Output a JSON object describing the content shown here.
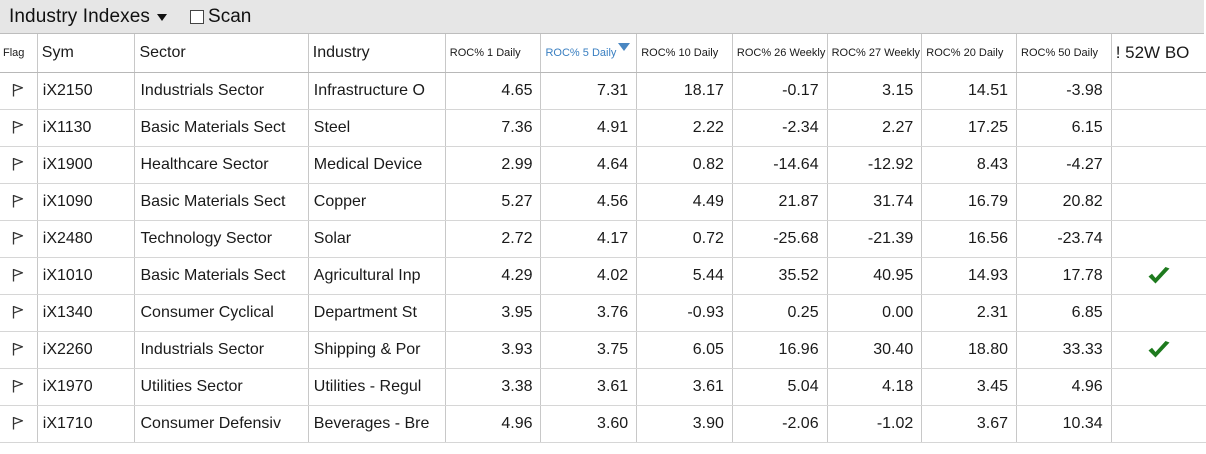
{
  "toolbar": {
    "title": "Industry Indexes",
    "scan_label": "Scan",
    "scan_checked": false
  },
  "columns": [
    {
      "key": "flag",
      "label": "Flag"
    },
    {
      "key": "sym",
      "label": "Sym"
    },
    {
      "key": "sector",
      "label": "Sector"
    },
    {
      "key": "industry",
      "label": "Industry"
    },
    {
      "key": "roc1",
      "label": "ROC% 1 Daily"
    },
    {
      "key": "roc5",
      "label": "ROC% 5 Daily",
      "sorted": "descending"
    },
    {
      "key": "roc10",
      "label": "ROC% 10 Daily"
    },
    {
      "key": "roc26w",
      "label": "ROC% 26 Weekly"
    },
    {
      "key": "roc27w",
      "label": "ROC% 27 Weekly"
    },
    {
      "key": "roc20",
      "label": "ROC% 20 Daily"
    },
    {
      "key": "roc50",
      "label": "ROC% 50 Daily"
    },
    {
      "key": "bo52",
      "label": "! 52W BO"
    }
  ],
  "rows": [
    {
      "sym": "iX2150",
      "sector": "Industrials Sector",
      "industry": "Infrastructure O",
      "roc1": "4.65",
      "roc5": "7.31",
      "roc10": "18.17",
      "roc26w": "-0.17",
      "roc27w": "3.15",
      "roc20": "14.51",
      "roc50": "-3.98",
      "bo52": false
    },
    {
      "sym": "iX1130",
      "sector": "Basic Materials Sect",
      "industry": "Steel",
      "roc1": "7.36",
      "roc5": "4.91",
      "roc10": "2.22",
      "roc26w": "-2.34",
      "roc27w": "2.27",
      "roc20": "17.25",
      "roc50": "6.15",
      "bo52": false
    },
    {
      "sym": "iX1900",
      "sector": "Healthcare Sector",
      "industry": "Medical Device",
      "roc1": "2.99",
      "roc5": "4.64",
      "roc10": "0.82",
      "roc26w": "-14.64",
      "roc27w": "-12.92",
      "roc20": "8.43",
      "roc50": "-4.27",
      "bo52": false
    },
    {
      "sym": "iX1090",
      "sector": "Basic Materials Sect",
      "industry": "Copper",
      "roc1": "5.27",
      "roc5": "4.56",
      "roc10": "4.49",
      "roc26w": "21.87",
      "roc27w": "31.74",
      "roc20": "16.79",
      "roc50": "20.82",
      "bo52": false
    },
    {
      "sym": "iX2480",
      "sector": "Technology Sector",
      "industry": "Solar",
      "roc1": "2.72",
      "roc5": "4.17",
      "roc10": "0.72",
      "roc26w": "-25.68",
      "roc27w": "-21.39",
      "roc20": "16.56",
      "roc50": "-23.74",
      "bo52": false
    },
    {
      "sym": "iX1010",
      "sector": "Basic Materials Sect",
      "industry": "Agricultural Inp",
      "roc1": "4.29",
      "roc5": "4.02",
      "roc10": "5.44",
      "roc26w": "35.52",
      "roc27w": "40.95",
      "roc20": "14.93",
      "roc50": "17.78",
      "bo52": true
    },
    {
      "sym": "iX1340",
      "sector": "Consumer Cyclical",
      "industry": "Department St",
      "roc1": "3.95",
      "roc5": "3.76",
      "roc10": "-0.93",
      "roc26w": "0.25",
      "roc27w": "0.00",
      "roc20": "2.31",
      "roc50": "6.85",
      "bo52": false
    },
    {
      "sym": "iX2260",
      "sector": "Industrials Sector",
      "industry": "Shipping & Por",
      "roc1": "3.93",
      "roc5": "3.75",
      "roc10": "6.05",
      "roc26w": "16.96",
      "roc27w": "30.40",
      "roc20": "18.80",
      "roc50": "33.33",
      "bo52": true
    },
    {
      "sym": "iX1970",
      "sector": "Utilities Sector",
      "industry": "Utilities - Regul",
      "roc1": "3.38",
      "roc5": "3.61",
      "roc10": "3.61",
      "roc26w": "5.04",
      "roc27w": "4.18",
      "roc20": "3.45",
      "roc50": "4.96",
      "bo52": false
    },
    {
      "sym": "iX1710",
      "sector": "Consumer Defensiv",
      "industry": "Beverages - Bre",
      "roc1": "4.96",
      "roc5": "3.60",
      "roc10": "3.90",
      "roc26w": "-2.06",
      "roc27w": "-1.02",
      "roc20": "3.67",
      "roc50": "10.34",
      "bo52": false
    }
  ],
  "icons": {
    "flag": "flag-outline-icon",
    "breakout": "checkmark-icon"
  },
  "colors": {
    "toolbar_bg": "#e6e6e6",
    "sorted_header": "#3a7fc1",
    "checkmark": "#1e7a1e",
    "grid_line": "#c8c8c8"
  }
}
